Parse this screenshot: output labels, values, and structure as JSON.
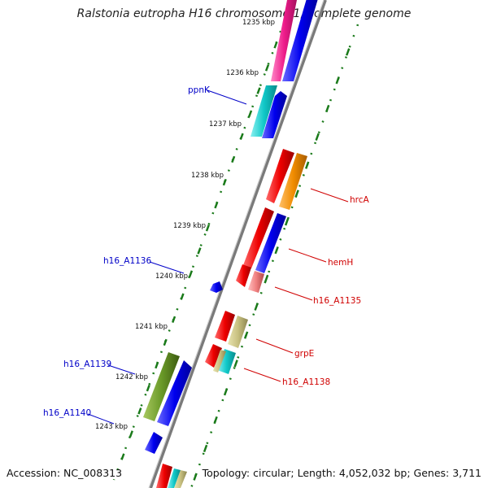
{
  "title": "Ralstonia eutropha H16 chromosome 1, complete genome",
  "footer": {
    "accession": "Accession: NC_008313",
    "summary": "Topology: circular; Length: 4,052,032 bp; Genes: 3,711"
  },
  "ruler": {
    "top_partial_label": "1235 kbp",
    "labels": [
      "1236 kbp",
      "1237 kbp",
      "1238 kbp",
      "1239 kbp",
      "1240 kbp",
      "1241 kbp",
      "1242 kbp",
      "1243 kbp"
    ]
  },
  "gene_labels": [
    {
      "text": "ppnK",
      "color": "#0000c8"
    },
    {
      "text": "hrcA",
      "color": "#d00000"
    },
    {
      "text": "hemH",
      "color": "#d00000"
    },
    {
      "text": "h16_A1136",
      "color": "#0000c8"
    },
    {
      "text": "h16_A1135",
      "color": "#d00000"
    },
    {
      "text": "grpE",
      "color": "#d00000"
    },
    {
      "text": "h16_A1139",
      "color": "#0000c8"
    },
    {
      "text": "h16_A1138",
      "color": "#d00000"
    },
    {
      "text": "h16_A1140",
      "color": "#0000c8"
    }
  ],
  "colors": {
    "forward_strand": "#0000ee",
    "reverse_strand": "#ee0000",
    "backbone": "#888888",
    "tick": "#1a7a1a"
  }
}
